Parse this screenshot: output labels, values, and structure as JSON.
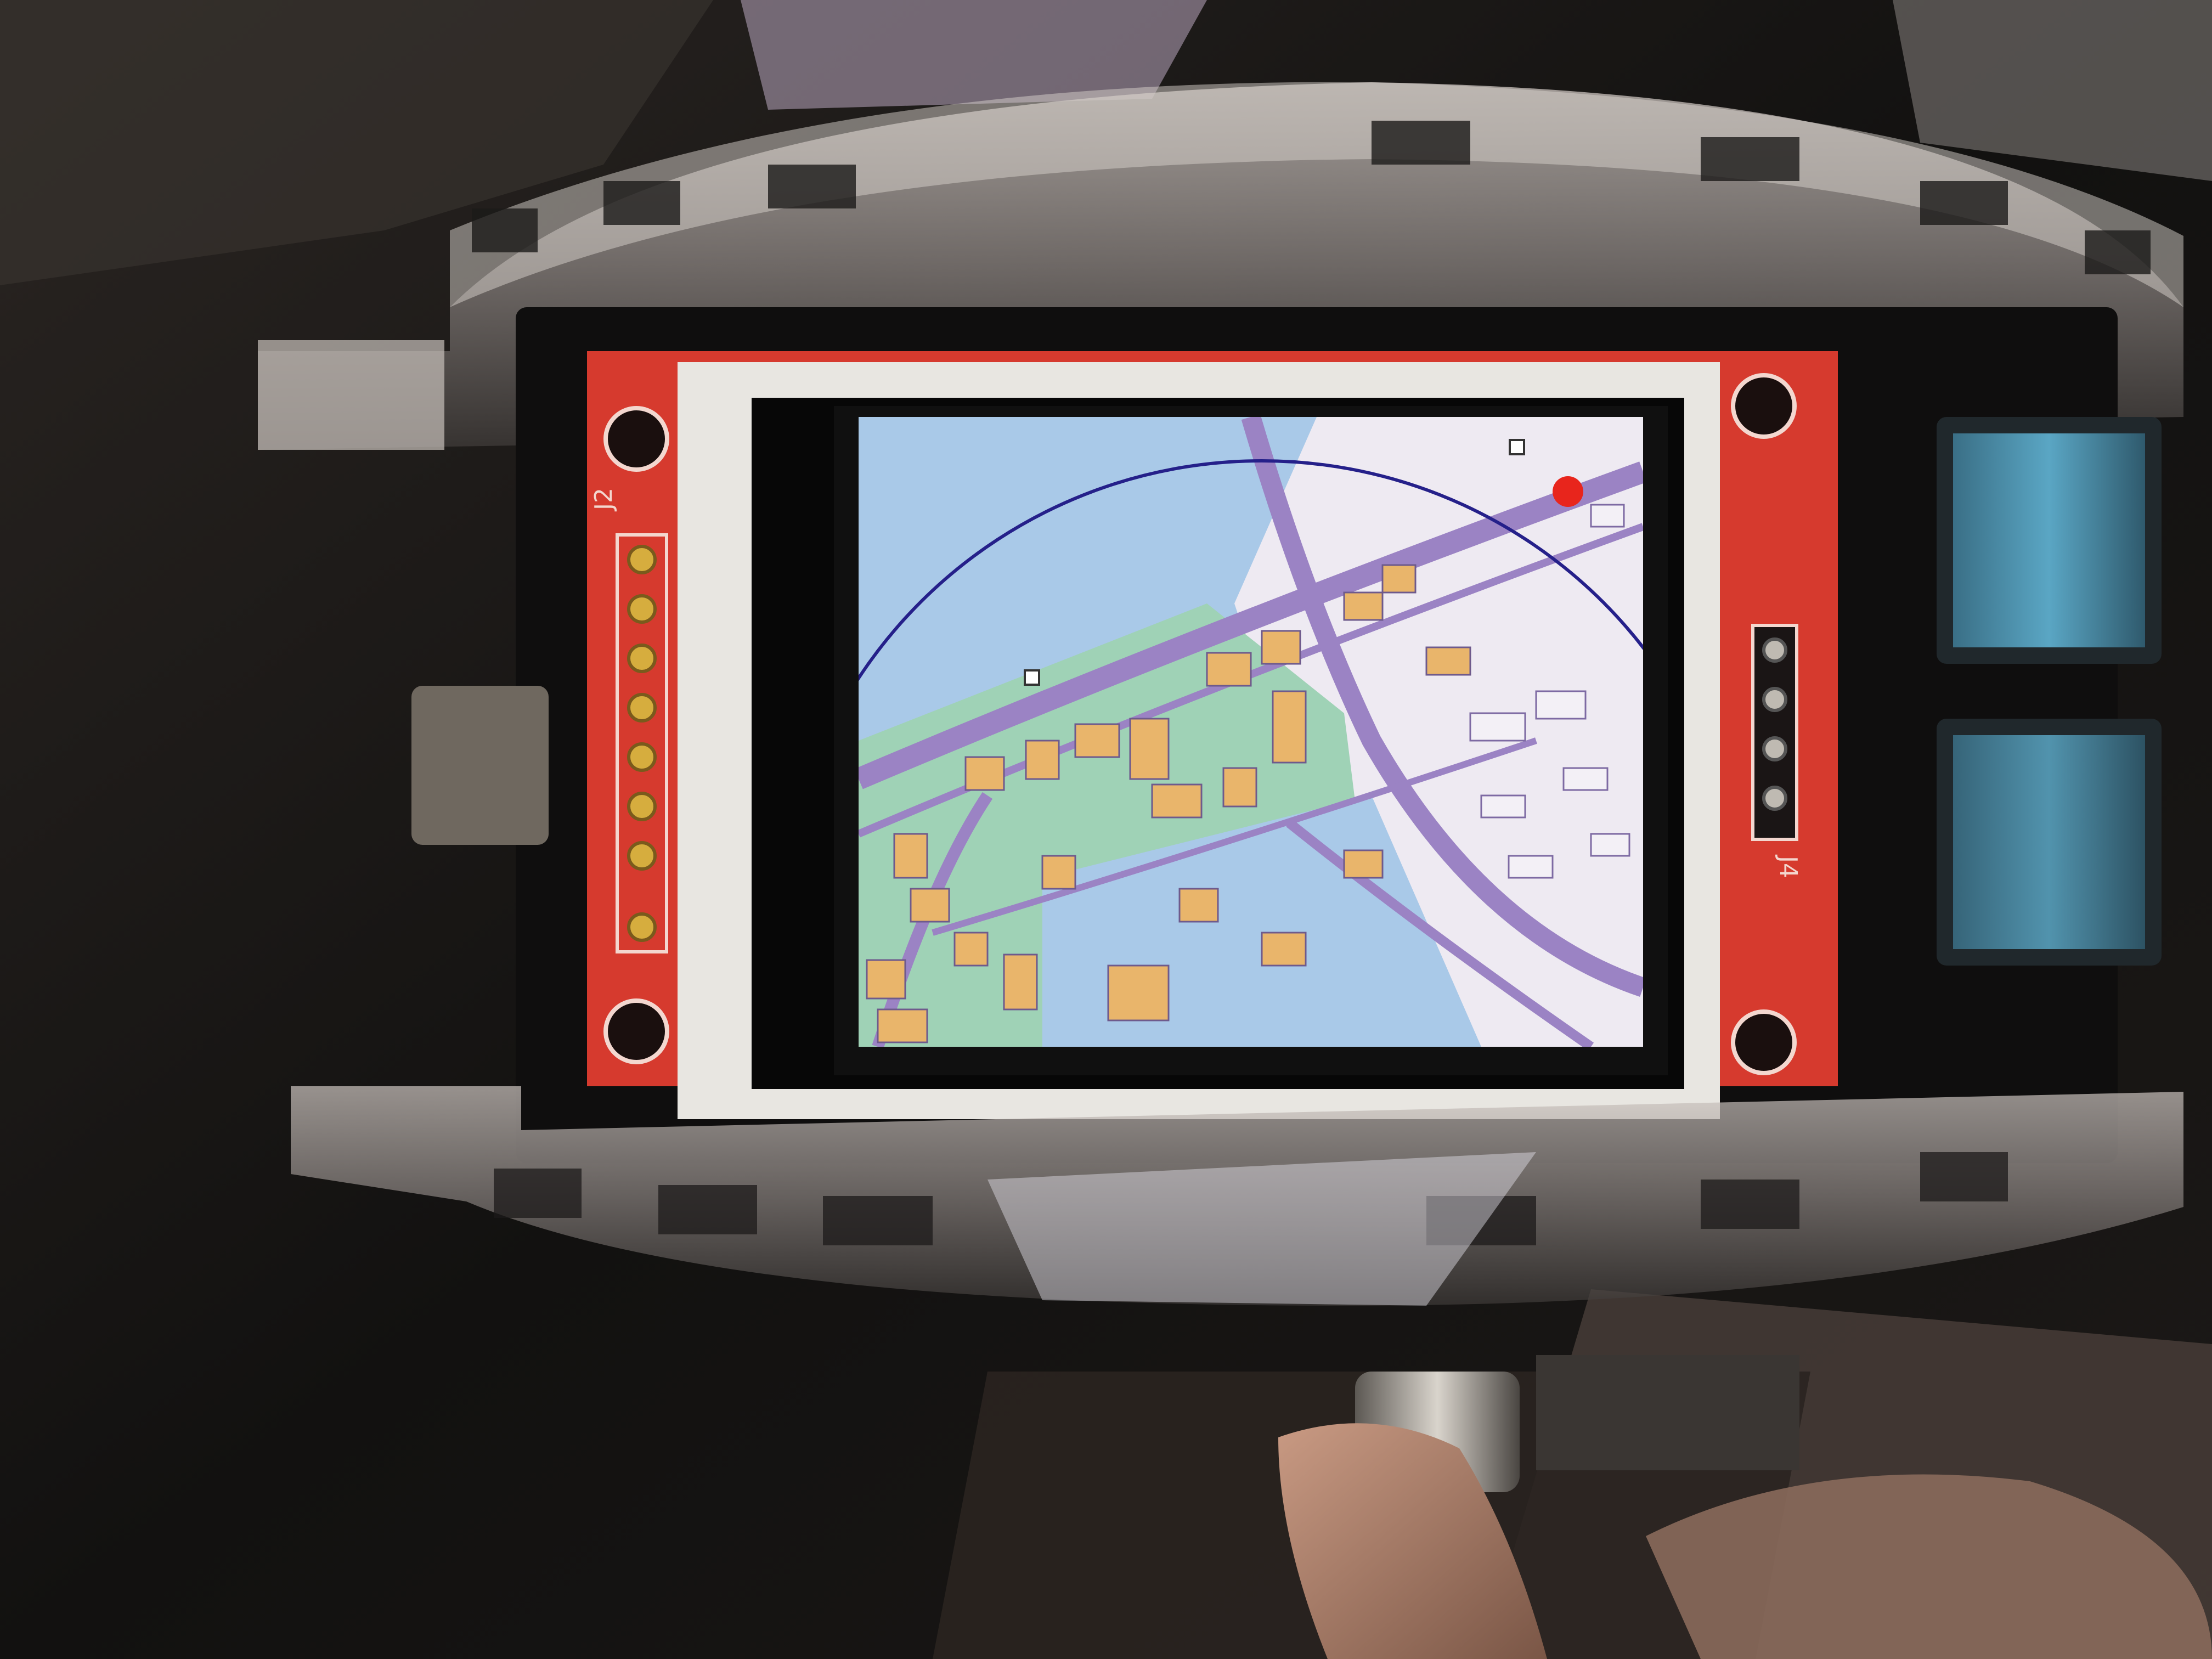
{
  "photo": {
    "subject": "handmade-gps-device-with-tft-map",
    "colors": {
      "background": "#151312",
      "pcb_red": "#d63a2e",
      "lcd_frame": "#e8e6e1",
      "map_water": "#a9c9e8",
      "map_park": "#9fd2b6",
      "map_building": "#e9b56b",
      "map_road": "#9b83c4",
      "map_land": "#eeeaf2",
      "radius_circle": "#25208a",
      "position_marker": "#e8251c"
    }
  },
  "pcb": {
    "left_connector_label": "J2",
    "right_connector_label": "J4",
    "left_pin_count": 8,
    "right_pin_count": 4
  },
  "screen": {
    "content": "map",
    "icons": [
      "map-pin-icon",
      "map-pin-icon"
    ]
  },
  "controls": {
    "buttons": [
      "upper-side-button",
      "lower-side-button",
      "bottom-knob"
    ]
  }
}
